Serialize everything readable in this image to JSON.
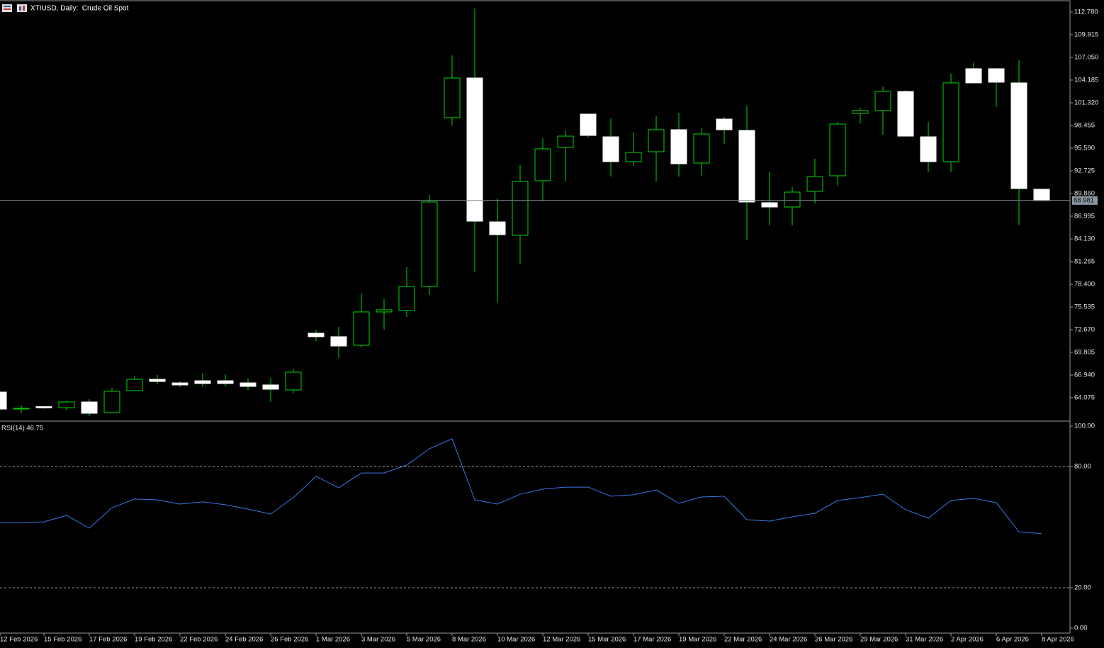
{
  "chart_data": [
    {
      "type": "candlestick",
      "title": "XTIUSD, Daily:  Crude Oil Spot",
      "categories": [
        "12 Feb 2026",
        null,
        "15 Feb 2026",
        null,
        "17 Feb 2026",
        null,
        "19 Feb 2026",
        null,
        "22 Feb 2026",
        null,
        "24 Feb 2026",
        null,
        "26 Feb 2026",
        null,
        "1 Mar 2026",
        null,
        "3 Mar 2026",
        null,
        "5 Mar 2026",
        null,
        "8 Mar 2026",
        null,
        "10 Mar 2026",
        null,
        "12 Mar 2026",
        null,
        "15 Mar 2026",
        null,
        "17 Mar 2026",
        null,
        "19 Mar 2026",
        null,
        "22 Mar 2026",
        null,
        "24 Mar 2026",
        null,
        "26 Mar 2026",
        null,
        "29 Mar 2026",
        null,
        "31 Mar 2026",
        null,
        "2 Apr 2026",
        null,
        "6 Apr 2026",
        null,
        "8 Apr 2026"
      ],
      "open": [
        64.79,
        62.65,
        62.95,
        62.82,
        63.54,
        62.2,
        64.97,
        66.4,
        65.95,
        66.22,
        66.22,
        65.95,
        65.69,
        65.06,
        72.22,
        71.78,
        70.7,
        74.91,
        75.09,
        78.13,
        99.44,
        104.45,
        86.28,
        84.58,
        91.47,
        95.68,
        99.89,
        97.02,
        93.89,
        95.14,
        97.92,
        93.71,
        99.26,
        97.83,
        88.7,
        88.16,
        90.13,
        92.1,
        99.98,
        100.34,
        102.75,
        97.02,
        93.89,
        105.62,
        105.62,
        103.83,
        90.4
      ],
      "high": [
        64.85,
        63.18,
        63.0,
        63.72,
        63.9,
        65.33,
        66.85,
        66.94,
        66.13,
        67.21,
        67.03,
        66.49,
        66.58,
        67.75,
        72.67,
        73.03,
        77.24,
        76.52,
        80.55,
        89.68,
        107.32,
        113.23,
        89.23,
        93.44,
        96.84,
        97.83,
        99.89,
        99.35,
        97.65,
        99.62,
        100.07,
        98.1,
        99.53,
        100.96,
        92.64,
        90.67,
        94.25,
        98.9,
        100.69,
        103.38,
        102.93,
        98.9,
        105.0,
        106.42,
        105.62,
        106.69,
        90.4
      ],
      "low": [
        62.6,
        62.11,
        62.7,
        62.47,
        61.75,
        62.11,
        64.88,
        65.78,
        65.42,
        65.42,
        65.51,
        65.06,
        63.54,
        64.7,
        71.24,
        69.09,
        70.43,
        72.67,
        74.28,
        77.06,
        98.46,
        79.92,
        76.16,
        80.91,
        88.88,
        91.38,
        96.93,
        92.01,
        93.35,
        91.38,
        92.01,
        92.1,
        96.13,
        83.95,
        85.83,
        85.83,
        88.61,
        90.85,
        98.72,
        97.29,
        97.11,
        92.55,
        92.55,
        103.83,
        100.78,
        85.92,
        88.96
      ],
      "close": [
        62.64,
        62.75,
        62.8,
        63.54,
        62.11,
        64.88,
        66.4,
        66.13,
        65.69,
        65.87,
        65.87,
        65.51,
        65.15,
        67.3,
        71.78,
        70.61,
        74.91,
        75.18,
        78.13,
        88.79,
        104.45,
        86.37,
        84.67,
        91.38,
        95.5,
        97.11,
        97.2,
        93.89,
        95.05,
        97.92,
        93.62,
        97.38,
        97.92,
        88.79,
        88.16,
        90.04,
        92.01,
        98.63,
        100.34,
        102.75,
        97.11,
        93.89,
        103.83,
        103.83,
        103.92,
        90.49,
        88.98
      ],
      "ylim": [
        61.3,
        114.12
      ],
      "yticks": [
        {
          "value": 112.78,
          "label": "112.780"
        },
        {
          "value": 109.915,
          "label": "109.915"
        },
        {
          "value": 107.05,
          "label": "107.050"
        },
        {
          "value": 104.185,
          "label": "104.185"
        },
        {
          "value": 101.32,
          "label": "101.320"
        },
        {
          "value": 98.455,
          "label": "98.455"
        },
        {
          "value": 95.59,
          "label": "95.590"
        },
        {
          "value": 92.725,
          "label": "92.725"
        },
        {
          "value": 89.86,
          "label": "89.860"
        },
        {
          "value": 86.995,
          "label": "86.995"
        },
        {
          "value": 84.13,
          "label": "84.130"
        },
        {
          "value": 81.265,
          "label": "81.265"
        },
        {
          "value": 78.4,
          "label": "78.400"
        },
        {
          "value": 75.535,
          "label": "75.535"
        },
        {
          "value": 72.67,
          "label": "72.670"
        },
        {
          "value": 69.805,
          "label": "69.805"
        },
        {
          "value": 66.94,
          "label": "66.940"
        },
        {
          "value": 64.075,
          "label": "64.075"
        }
      ],
      "last_price": {
        "value": 88.981,
        "label": "88.981"
      },
      "up_color": "#000000",
      "down_color": "#ffffff",
      "wick_color": "#00d800"
    },
    {
      "type": "line",
      "title": "RSI(14) 46.75",
      "values": [
        52.3,
        52.3,
        52.6,
        55.8,
        49.5,
        59.6,
        63.9,
        63.5,
        61.4,
        62.5,
        61.1,
        58.9,
        56.5,
        64.6,
        75.1,
        69.5,
        76.8,
        76.8,
        80.7,
        88.8,
        93.7,
        63.5,
        61.4,
        66.3,
        68.8,
        69.8,
        69.8,
        65.3,
        66.0,
        68.4,
        61.8,
        64.9,
        65.3,
        53.7,
        53.0,
        55.1,
        56.8,
        63.2,
        64.6,
        66.3,
        58.6,
        54.4,
        63.2,
        64.2,
        62.1,
        47.7,
        46.75
      ],
      "color": "#3a78e6",
      "ylim": [
        0,
        100
      ],
      "yticks": [
        {
          "value": 100,
          "label": "100.00"
        },
        {
          "value": 80,
          "label": "80.00"
        },
        {
          "value": 20,
          "label": "20.00"
        },
        {
          "value": 0,
          "label": "0.00"
        }
      ]
    }
  ]
}
